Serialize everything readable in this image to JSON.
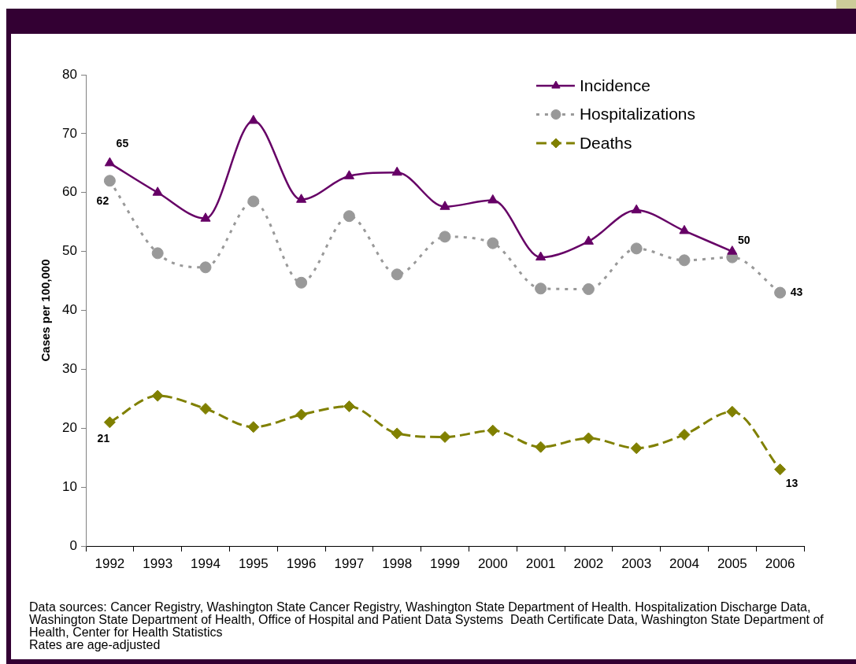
{
  "chart_data": {
    "type": "line",
    "categories": [
      "1992",
      "1993",
      "1994",
      "1995",
      "1996",
      "1997",
      "1998",
      "1999",
      "2000",
      "2001",
      "2002",
      "2003",
      "2004",
      "2005",
      "2006"
    ],
    "ylabel": "Cases per 100,000",
    "ylim": [
      0,
      80
    ],
    "yticks": [
      0,
      10,
      20,
      30,
      40,
      50,
      60,
      70,
      80
    ],
    "grid": false,
    "legend": "top right",
    "series": [
      {
        "name": "Incidence",
        "color": "#660066",
        "marker": "triangle",
        "line_style": "solid",
        "values": [
          65,
          60,
          55.6,
          72.2,
          58.8,
          62.8,
          63.4,
          57.6,
          58.7,
          49,
          51.7,
          57,
          53.5,
          50,
          null
        ],
        "value_labels": [
          "65",
          null,
          null,
          null,
          null,
          null,
          null,
          null,
          null,
          null,
          null,
          null,
          null,
          "50",
          null
        ]
      },
      {
        "name": "Hospitalizations",
        "color": "#999999",
        "marker": "circle",
        "line_style": "dotted",
        "values": [
          62,
          49.7,
          47.3,
          58.5,
          44.7,
          56,
          46.1,
          52.5,
          51.4,
          43.7,
          43.6,
          50.5,
          48.5,
          49,
          43
        ],
        "value_labels": [
          "62",
          null,
          null,
          null,
          null,
          null,
          null,
          null,
          null,
          null,
          null,
          null,
          null,
          null,
          "43"
        ]
      },
      {
        "name": "Deaths",
        "color": "#808000",
        "marker": "diamond",
        "line_style": "dashed",
        "values": [
          21,
          25.5,
          23.3,
          20.2,
          22.3,
          23.7,
          19.1,
          18.5,
          19.6,
          16.8,
          18.3,
          16.6,
          18.9,
          22.8,
          13
        ],
        "value_labels": [
          "21",
          null,
          null,
          null,
          null,
          null,
          null,
          null,
          null,
          null,
          null,
          null,
          null,
          null,
          "13"
        ]
      }
    ],
    "annotations": [
      "Data sources: Cancer Registry, Washington State Cancer Registry, Washington State Department of Health. Hospitalization Discharge Data, Washington State Department of Health, Office of Hospital and Patient Data Systems  Death Certificate Data, Washington State Department of Health, Center for Health Statistics",
      "Rates are age-adjusted"
    ]
  }
}
